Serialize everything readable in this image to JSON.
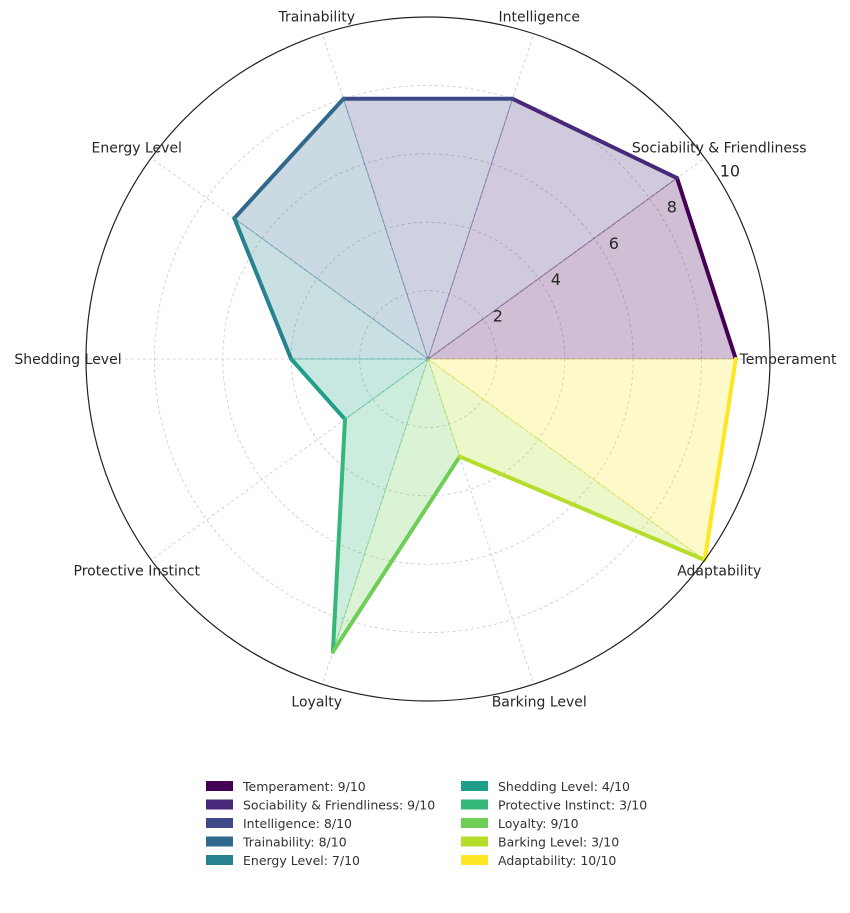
{
  "chart_data": {
    "type": "radar",
    "categories": [
      "Temperament",
      "Sociability & Friendliness",
      "Intelligence",
      "Trainability",
      "Energy Level",
      "Shedding Level",
      "Protective Instinct",
      "Loyalty",
      "Barking Level",
      "Adaptability"
    ],
    "values": [
      9,
      9,
      8,
      8,
      7,
      4,
      3,
      9,
      3,
      10
    ],
    "colors": [
      "#440154",
      "#482878",
      "#3e4989",
      "#31688e",
      "#26828e",
      "#1f9e89",
      "#35b779",
      "#6ece58",
      "#b5de2b",
      "#fde725"
    ],
    "rlim": [
      0,
      10
    ],
    "rticks": [
      "2",
      "4",
      "6",
      "8",
      "10"
    ],
    "grid": true,
    "legend_position": "bottom",
    "legend": [
      "Temperament: 9/10",
      "Sociability & Friendliness: 9/10",
      "Intelligence: 8/10",
      "Trainability: 8/10",
      "Energy Level: 7/10",
      "Shedding Level: 4/10",
      "Protective Instinct: 3/10",
      "Loyalty: 9/10",
      "Barking Level: 3/10",
      "Adaptability: 10/10"
    ]
  }
}
